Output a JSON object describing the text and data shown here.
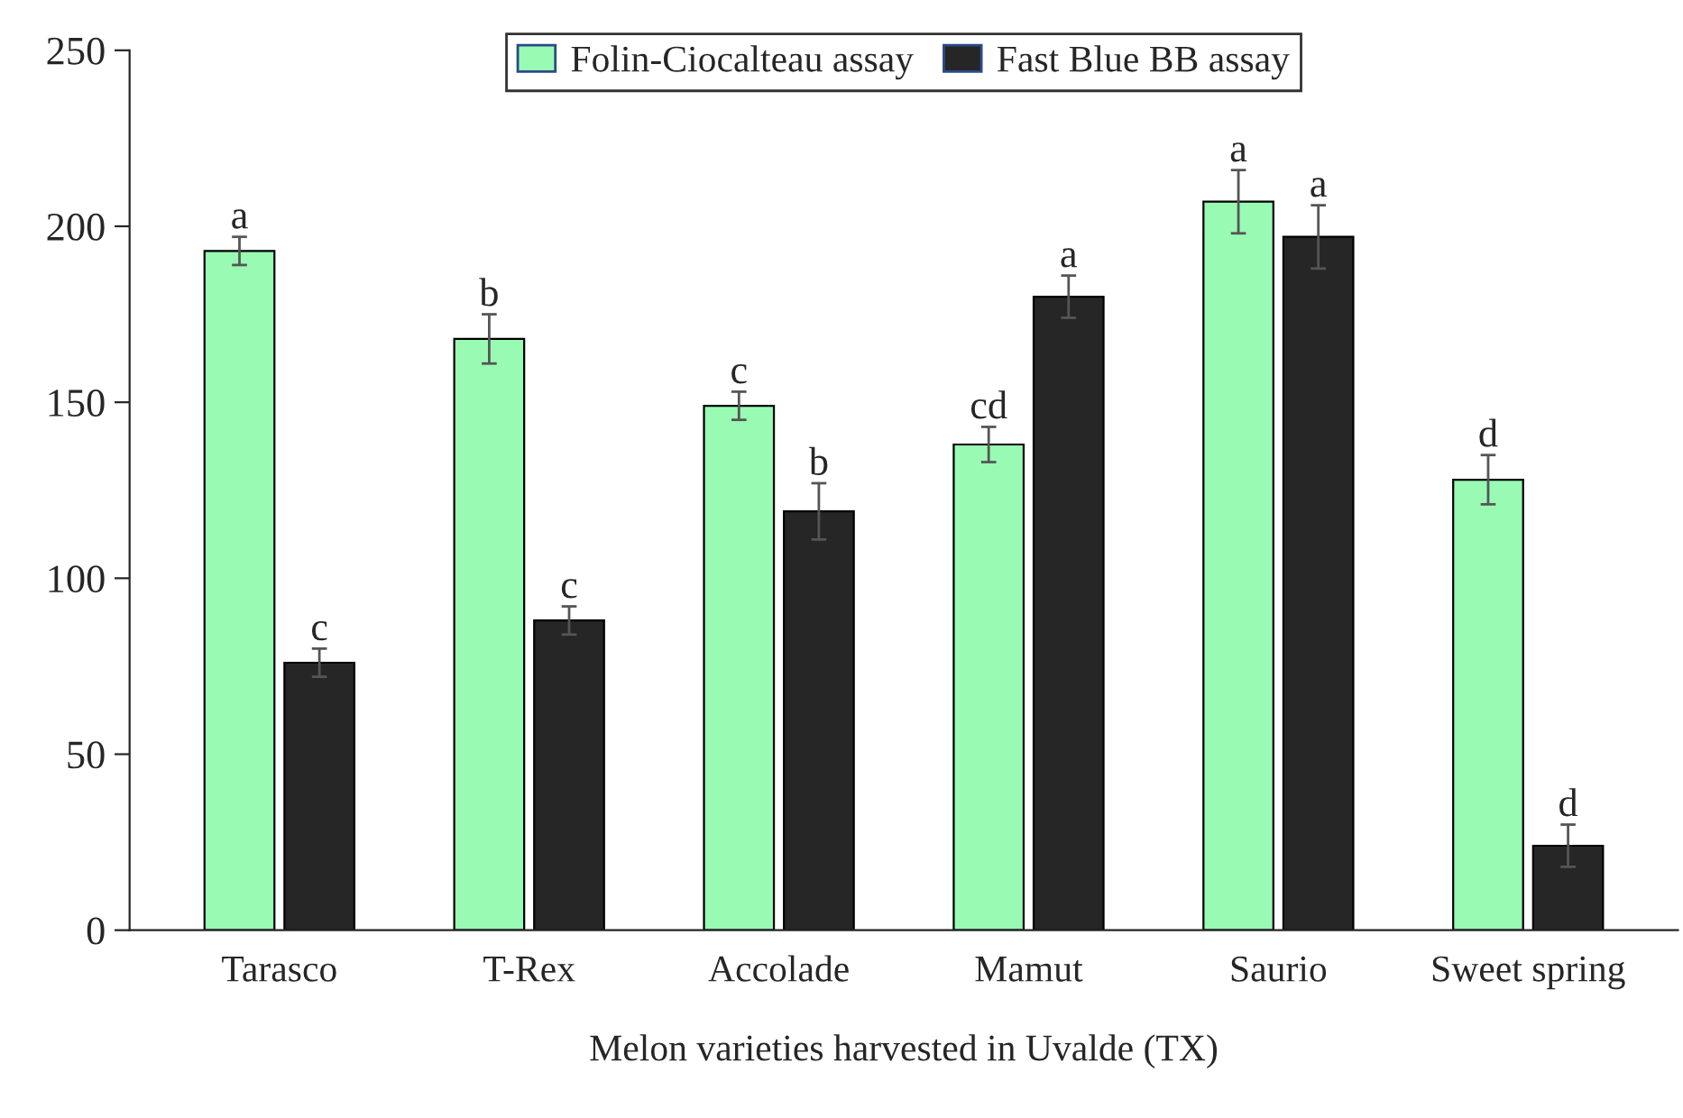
{
  "chart_data": {
    "type": "bar",
    "xlabel": "Melon varieties harvested in Uvalde (TX)",
    "categories": [
      "Tarasco",
      "T-Rex",
      "Accolade",
      "Mamut",
      "Saurio",
      "Sweet spring"
    ],
    "series": [
      {
        "name": "Folin-Ciocalteau assay",
        "color": "#99fab4",
        "values": [
          193,
          168,
          149,
          138,
          207,
          128
        ],
        "errors": [
          4,
          7,
          4,
          5,
          9,
          7
        ]
      },
      {
        "name": "Fast Blue BB assay",
        "color": "#262626",
        "values": [
          76,
          88,
          119,
          180,
          197,
          24
        ],
        "errors": [
          4,
          4,
          8,
          6,
          9,
          6
        ]
      }
    ],
    "annotations": [
      {
        "text": "a",
        "x": "Tarasco",
        "y": 193
      },
      {
        "text": "c",
        "x": "Tarasco",
        "y": 76
      },
      {
        "text": "b",
        "x": "T-Rex",
        "y": 168
      },
      {
        "text": "c",
        "x": "T-Rex",
        "y": 88
      },
      {
        "text": "c",
        "x": "Accolade",
        "y": 149
      },
      {
        "text": "b",
        "x": "Accolade",
        "y": 119
      },
      {
        "text": "cd",
        "x": "Mamut",
        "y": 138
      },
      {
        "text": "a",
        "x": "Mamut",
        "y": 180
      },
      {
        "text": "a",
        "x": "Saurio",
        "y": 207
      },
      {
        "text": "a",
        "x": "Saurio",
        "y": 197
      },
      {
        "text": "d",
        "x": "Sweet spring",
        "y": 128
      },
      {
        "text": "d",
        "x": "Sweet spring",
        "y": 24
      }
    ],
    "ylim": [
      0,
      250
    ],
    "yticks": [
      0,
      50,
      100,
      150,
      200,
      250
    ],
    "grid": false,
    "legend": "top"
  }
}
